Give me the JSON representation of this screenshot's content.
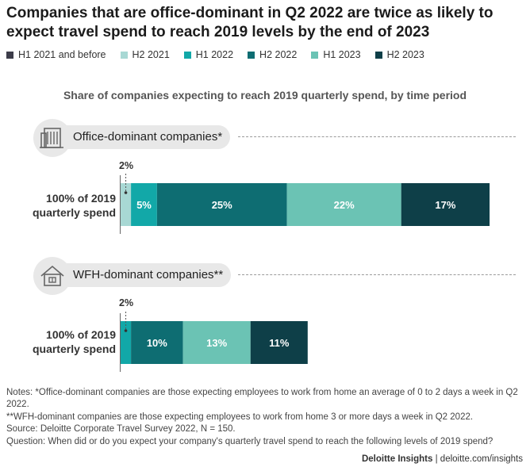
{
  "title": "Companies that are office-dominant in Q2 2022 are twice as likely to expect travel spend to reach 2019 levels by the end of 2023",
  "legend": [
    {
      "label": "H1 2021 and before",
      "color": "#3d3d4a"
    },
    {
      "label": "H2 2021",
      "color": "#a8d8d4"
    },
    {
      "label": "H1 2022",
      "color": "#12a8a8"
    },
    {
      "label": "H2 2022",
      "color": "#0e6d72"
    },
    {
      "label": "H1 2023",
      "color": "#6bc3b4"
    },
    {
      "label": "H2 2023",
      "color": "#0e3f48"
    }
  ],
  "chart_data": {
    "type": "bar",
    "orientation": "horizontal-stacked",
    "title": "Share of companies expecting to reach 2019 quarterly spend, by time period",
    "categories": [
      "H1 2021 and before",
      "H2 2021",
      "H1 2022",
      "H2 2022",
      "H1 2023",
      "H2 2023"
    ],
    "groups": [
      {
        "name": "Office-dominant companies*",
        "row_label": [
          "100% of 2019",
          "quarterly spend"
        ],
        "values": [
          0,
          2,
          5,
          25,
          22,
          17
        ],
        "labels": [
          "",
          "2%",
          "5%",
          "25%",
          "22%",
          "17%"
        ]
      },
      {
        "name": "WFH-dominant companies**",
        "row_label": [
          "100% of 2019",
          "quarterly spend"
        ],
        "values": [
          0,
          0,
          2,
          10,
          13,
          11
        ],
        "labels": [
          "",
          "",
          "2%",
          "10%",
          "13%",
          "11%"
        ]
      }
    ],
    "grid": false,
    "legend_position": "top"
  },
  "notes": [
    "Notes: *Office-dominant companies are those expecting employees to work from home an average of 0 to 2 days a week in Q2 2022.",
    "**WFH-dominant companies are those expecting employees to work from home 3 or more days a week in Q2 2022.",
    "Source: Deloitte Corporate Travel Survey 2022, N = 150.",
    "Question: When did or do you expect your company's quarterly travel spend to reach the following levels of 2019 spend?"
  ],
  "footer": {
    "brand": "Deloitte Insights",
    "separator": " | ",
    "url": "deloitte.com/insights"
  }
}
